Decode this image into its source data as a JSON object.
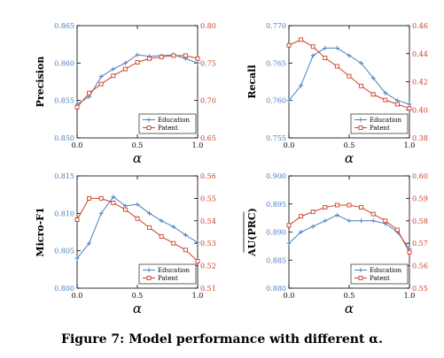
{
  "caption": "Figure 7: Model performance with different α.",
  "colors": {
    "education": "#4a7fc1",
    "patent": "#cc4125",
    "axis": "#000000"
  },
  "chart_data": [
    {
      "type": "line",
      "ylabel": "Precision",
      "xlabel": "α",
      "xlim": [
        0,
        1
      ],
      "xticks": [
        0,
        0.5,
        1
      ],
      "ylim_left": [
        0.85,
        0.865
      ],
      "yticks_left": [
        0.85,
        0.855,
        0.86,
        0.865
      ],
      "ylim_right": [
        0.65,
        0.8
      ],
      "yticks_right": [
        0.65,
        0.7,
        0.75,
        0.8
      ],
      "legend": "bottom-right",
      "series": [
        {
          "name": "Education",
          "axis": "left",
          "marker": "plus",
          "x": [
            0,
            0.1,
            0.2,
            0.3,
            0.4,
            0.5,
            0.6,
            0.7,
            0.8,
            0.9,
            1.0
          ],
          "y": [
            0.8545,
            0.8555,
            0.8582,
            0.8592,
            0.86,
            0.8611,
            0.8609,
            0.861,
            0.8611,
            0.8606,
            0.86
          ]
        },
        {
          "name": "Patent",
          "axis": "right",
          "marker": "square",
          "x": [
            0,
            0.1,
            0.2,
            0.3,
            0.4,
            0.5,
            0.6,
            0.7,
            0.8,
            0.9,
            1.0
          ],
          "y": [
            0.691,
            0.71,
            0.722,
            0.733,
            0.742,
            0.751,
            0.756,
            0.758,
            0.76,
            0.76,
            0.756
          ]
        }
      ]
    },
    {
      "type": "line",
      "ylabel": "Recall",
      "xlabel": "α",
      "xlim": [
        0,
        1
      ],
      "xticks": [
        0,
        0.5,
        1
      ],
      "ylim_left": [
        0.755,
        0.77
      ],
      "yticks_left": [
        0.755,
        0.76,
        0.765,
        0.77
      ],
      "ylim_right": [
        0.38,
        0.46
      ],
      "yticks_right": [
        0.38,
        0.4,
        0.42,
        0.44,
        0.46
      ],
      "legend": "bottom-right",
      "series": [
        {
          "name": "Education",
          "axis": "left",
          "marker": "plus",
          "x": [
            0,
            0.1,
            0.2,
            0.3,
            0.4,
            0.5,
            0.6,
            0.7,
            0.8,
            0.9,
            1.0
          ],
          "y": [
            0.76,
            0.762,
            0.766,
            0.767,
            0.767,
            0.766,
            0.765,
            0.763,
            0.761,
            0.76,
            0.7595
          ]
        },
        {
          "name": "Patent",
          "axis": "right",
          "marker": "square",
          "x": [
            0,
            0.1,
            0.2,
            0.3,
            0.4,
            0.5,
            0.6,
            0.7,
            0.8,
            0.9,
            1.0
          ],
          "y": [
            0.446,
            0.45,
            0.445,
            0.437,
            0.431,
            0.424,
            0.417,
            0.411,
            0.407,
            0.404,
            0.401
          ]
        }
      ]
    },
    {
      "type": "line",
      "ylabel": "Micro-F1",
      "xlabel": "α",
      "xlim": [
        0,
        1
      ],
      "xticks": [
        0,
        0.5,
        1
      ],
      "ylim_left": [
        0.8,
        0.815
      ],
      "yticks_left": [
        0.8,
        0.805,
        0.81,
        0.815
      ],
      "ylim_right": [
        0.51,
        0.56
      ],
      "yticks_right": [
        0.51,
        0.52,
        0.53,
        0.54,
        0.55,
        0.56
      ],
      "legend": "bottom-right",
      "series": [
        {
          "name": "Education",
          "axis": "left",
          "marker": "plus",
          "x": [
            0,
            0.1,
            0.2,
            0.3,
            0.4,
            0.5,
            0.6,
            0.7,
            0.8,
            0.9,
            1.0
          ],
          "y": [
            0.804,
            0.806,
            0.81,
            0.8122,
            0.811,
            0.8112,
            0.81,
            0.809,
            0.8082,
            0.8071,
            0.8061
          ]
        },
        {
          "name": "Patent",
          "axis": "right",
          "marker": "square",
          "x": [
            0,
            0.1,
            0.2,
            0.3,
            0.4,
            0.5,
            0.6,
            0.7,
            0.8,
            0.9,
            1.0
          ],
          "y": [
            0.5405,
            0.55,
            0.55,
            0.548,
            0.545,
            0.541,
            0.537,
            0.533,
            0.53,
            0.527,
            0.522
          ]
        }
      ]
    },
    {
      "type": "line",
      "ylabel": "AU(PRC)",
      "xlabel": "α",
      "xlim": [
        0,
        1
      ],
      "xticks": [
        0,
        0.5,
        1
      ],
      "ylim_left": [
        0.88,
        0.9
      ],
      "yticks_left": [
        0.88,
        0.885,
        0.89,
        0.895,
        0.9
      ],
      "ylim_right": [
        0.55,
        0.6
      ],
      "yticks_right": [
        0.55,
        0.56,
        0.57,
        0.58,
        0.59,
        0.6
      ],
      "legend": "bottom-right",
      "series": [
        {
          "name": "Education",
          "axis": "left",
          "marker": "plus",
          "x": [
            0,
            0.1,
            0.2,
            0.3,
            0.4,
            0.5,
            0.6,
            0.7,
            0.8,
            0.9,
            1.0
          ],
          "y": [
            0.888,
            0.89,
            0.891,
            0.892,
            0.893,
            0.892,
            0.892,
            0.892,
            0.8915,
            0.89,
            0.887
          ]
        },
        {
          "name": "Patent",
          "axis": "right",
          "marker": "square",
          "x": [
            0,
            0.1,
            0.2,
            0.3,
            0.4,
            0.5,
            0.6,
            0.7,
            0.8,
            0.9,
            1.0
          ],
          "y": [
            0.578,
            0.582,
            0.584,
            0.586,
            0.587,
            0.587,
            0.586,
            0.583,
            0.58,
            0.576,
            0.566
          ]
        }
      ]
    }
  ]
}
